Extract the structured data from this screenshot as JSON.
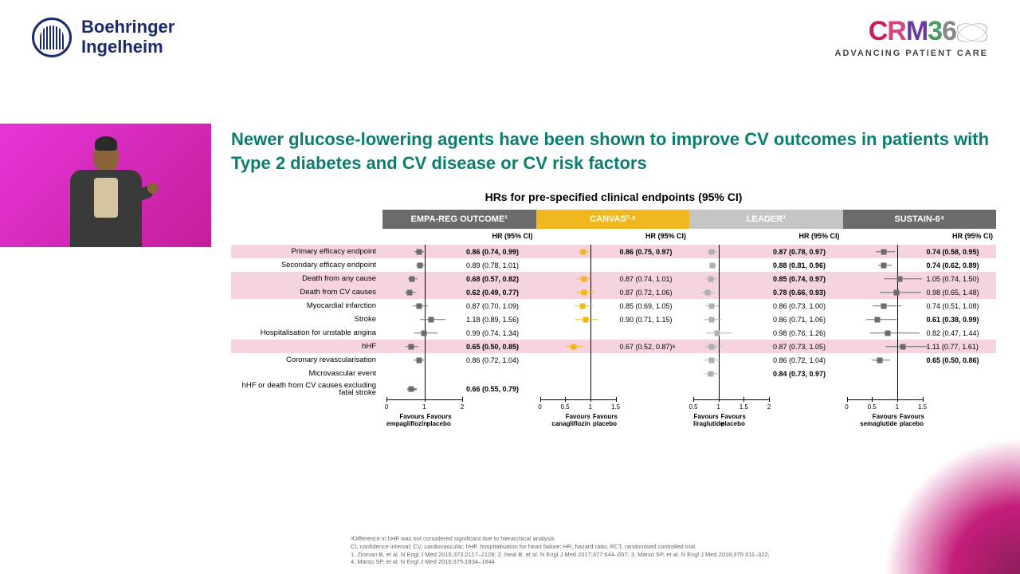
{
  "logo": {
    "line1": "Boehringer",
    "line2": "Ingelheim"
  },
  "crm360": {
    "tagline": "ADVANCING PATIENT CARE"
  },
  "title": "Newer glucose-lowering agents have been shown to improve CV outcomes in patients with Type 2 diabetes and CV disease or CV risk factors",
  "chart_title": "HRs for pre-specified clinical endpoints (95% CI)",
  "hr_col_label": "HR (95% CI)",
  "rows": [
    {
      "label": "Primary efficacy endpoint",
      "hl": true
    },
    {
      "label": "Secondary efficacy endpoint",
      "hl": false
    },
    {
      "label": "Death from any cause",
      "hl": true
    },
    {
      "label": "Death from CV causes",
      "hl": true
    },
    {
      "label": "Myocardial infarction",
      "hl": false
    },
    {
      "label": "Stroke",
      "hl": false
    },
    {
      "label": "Hospitalisation for unstable angina",
      "hl": false
    },
    {
      "label": "hHF",
      "hl": true
    },
    {
      "label": "Coronary revascularisation",
      "hl": false
    },
    {
      "label": "Microvascular event",
      "hl": false
    },
    {
      "label": "hHF or death from CV causes excluding fatal stroke",
      "hl": false
    }
  ],
  "trials": [
    {
      "name": "EMPA-REG OUTCOME¹",
      "header_bg": "#6b6b6b",
      "marker_color": "#6b6b6b",
      "xlim": [
        0,
        2
      ],
      "ticks": [
        0,
        1,
        2
      ],
      "ref": 1,
      "favours_left": "Favours empagliflozin",
      "favours_right": "Favours placebo",
      "data": [
        {
          "hr": 0.86,
          "lo": 0.74,
          "hi": 0.99,
          "txt": "0.86 (0.74, 0.99)",
          "bold": true
        },
        {
          "hr": 0.89,
          "lo": 0.78,
          "hi": 1.01,
          "txt": "0.89 (0.78, 1.01)"
        },
        {
          "hr": 0.68,
          "lo": 0.57,
          "hi": 0.82,
          "txt": "0.68 (0.57, 0.82)",
          "bold": true
        },
        {
          "hr": 0.62,
          "lo": 0.49,
          "hi": 0.77,
          "txt": "0.62 (0.49, 0.77)",
          "bold": true
        },
        {
          "hr": 0.87,
          "lo": 0.7,
          "hi": 1.09,
          "txt": "0.87 (0.70, 1.09)"
        },
        {
          "hr": 1.18,
          "lo": 0.89,
          "hi": 1.56,
          "txt": "1.18 (0.89, 1.56)"
        },
        {
          "hr": 0.99,
          "lo": 0.74,
          "hi": 1.34,
          "txt": "0.99 (0.74, 1.34)"
        },
        {
          "hr": 0.65,
          "lo": 0.5,
          "hi": 0.85,
          "txt": "0.65 (0.50, 0.85)",
          "bold": true
        },
        {
          "hr": 0.86,
          "lo": 0.72,
          "hi": 1.04,
          "txt": "0.86 (0.72, 1.04)"
        },
        null,
        {
          "hr": 0.66,
          "lo": 0.55,
          "hi": 0.79,
          "txt": "0.66 (0.55, 0.79)",
          "bold": true
        }
      ]
    },
    {
      "name": "CANVAS²·ᵃ",
      "header_bg": "#f0b81e",
      "marker_color": "#f0b81e",
      "xlim": [
        0,
        1.5
      ],
      "ticks": [
        0,
        0.5,
        1,
        1.5
      ],
      "ref": 1,
      "favours_left": "Favours canagliflozin",
      "favours_right": "Favours placebo",
      "data": [
        {
          "hr": 0.86,
          "lo": 0.75,
          "hi": 0.97,
          "txt": "0.86 (0.75, 0.97)",
          "bold": true
        },
        null,
        {
          "hr": 0.87,
          "lo": 0.74,
          "hi": 1.01,
          "txt": "0.87 (0.74, 1.01)"
        },
        {
          "hr": 0.87,
          "lo": 0.72,
          "hi": 1.06,
          "txt": "0.87 (0.72, 1.06)"
        },
        {
          "hr": 0.85,
          "lo": 0.69,
          "hi": 1.05,
          "txt": "0.85 (0.69, 1.05)"
        },
        {
          "hr": 0.9,
          "lo": 0.71,
          "hi": 1.15,
          "txt": "0.90 (0.71, 1.15)"
        },
        null,
        {
          "hr": 0.67,
          "lo": 0.52,
          "hi": 0.87,
          "txt": "0.67 (0.52, 0.87)ᵃ"
        },
        null,
        null,
        null
      ]
    },
    {
      "name": "LEADER³",
      "header_bg": "#c5c5c5",
      "marker_color": "#b0b0b0",
      "xlim": [
        0.5,
        2
      ],
      "ticks": [
        0.5,
        1,
        1.5,
        2
      ],
      "ref": 1,
      "favours_left": "Favours liraglutide",
      "favours_right": "Favours placebo",
      "data": [
        {
          "hr": 0.87,
          "lo": 0.78,
          "hi": 0.97,
          "txt": "0.87 (0.78, 0.97)",
          "bold": true
        },
        {
          "hr": 0.88,
          "lo": 0.81,
          "hi": 0.96,
          "txt": "0.88 (0.81, 0.96)",
          "bold": true
        },
        {
          "hr": 0.85,
          "lo": 0.74,
          "hi": 0.97,
          "txt": "0.85 (0.74, 0.97)",
          "bold": true
        },
        {
          "hr": 0.78,
          "lo": 0.66,
          "hi": 0.93,
          "txt": "0.78 (0.66, 0.93)",
          "bold": true
        },
        {
          "hr": 0.86,
          "lo": 0.73,
          "hi": 1.0,
          "txt": "0.86 (0.73, 1.00)"
        },
        {
          "hr": 0.86,
          "lo": 0.71,
          "hi": 1.06,
          "txt": "0.86 (0.71, 1.06)"
        },
        {
          "hr": 0.98,
          "lo": 0.76,
          "hi": 1.26,
          "txt": "0.98 (0.76, 1.26)"
        },
        {
          "hr": 0.87,
          "lo": 0.73,
          "hi": 1.05,
          "txt": "0.87 (0.73, 1.05)"
        },
        {
          "hr": 0.86,
          "lo": 0.72,
          "hi": 1.04,
          "txt": "0.86 (0.72, 1.04)"
        },
        {
          "hr": 0.84,
          "lo": 0.73,
          "hi": 0.97,
          "txt": "0.84 (0.73, 0.97)",
          "bold": true
        },
        null
      ]
    },
    {
      "name": "SUSTAIN-6⁴",
      "header_bg": "#6b6b6b",
      "marker_color": "#6b6b6b",
      "xlim": [
        0,
        1.5
      ],
      "ticks": [
        0,
        0.5,
        1,
        1.5
      ],
      "ref": 1,
      "favours_left": "Favours semaglutide",
      "favours_right": "Favours placebo",
      "data": [
        {
          "hr": 0.74,
          "lo": 0.58,
          "hi": 0.95,
          "txt": "0.74 (0.58, 0.95)",
          "bold": true
        },
        {
          "hr": 0.74,
          "lo": 0.62,
          "hi": 0.89,
          "txt": "0.74 (0.62, 0.89)",
          "bold": true
        },
        {
          "hr": 1.05,
          "lo": 0.74,
          "hi": 1.5,
          "txt": "1.05 (0.74, 1.50)"
        },
        {
          "hr": 0.98,
          "lo": 0.65,
          "hi": 1.48,
          "txt": "0.98 (0.65, 1.48)"
        },
        {
          "hr": 0.74,
          "lo": 0.51,
          "hi": 1.08,
          "txt": "0.74 (0.51, 1.08)"
        },
        {
          "hr": 0.61,
          "lo": 0.38,
          "hi": 0.99,
          "txt": "0.61 (0.38, 0.99)",
          "bold": true
        },
        {
          "hr": 0.82,
          "lo": 0.47,
          "hi": 1.44,
          "txt": "0.82 (0.47, 1.44)"
        },
        {
          "hr": 1.11,
          "lo": 0.77,
          "hi": 1.61,
          "txt": "1.11 (0.77, 1.61)"
        },
        {
          "hr": 0.65,
          "lo": 0.5,
          "hi": 0.86,
          "txt": "0.65 (0.50, 0.86)",
          "bold": true
        },
        null,
        null
      ]
    }
  ],
  "footnotes": [
    "ᵃDifference in hHF was not considered significant due to hierarchical analysis",
    "CI, confidence interval; CV, cardiovascular; hHF, hospitalisation for heart failure; HR, hazard ratio; RCT, randomised controlled trial.",
    "1. Zinman B, et al. N Engl J Med 2015;373:2117–2128; 2. Neal B, et al. N Engl J Med 2017;377:644–657; 3. Marso SP, et al. N Engl J Med 2016;375:311–322;",
    "4. Marso SP, et al. N Engl J Med 2016;375:1834–1844"
  ]
}
